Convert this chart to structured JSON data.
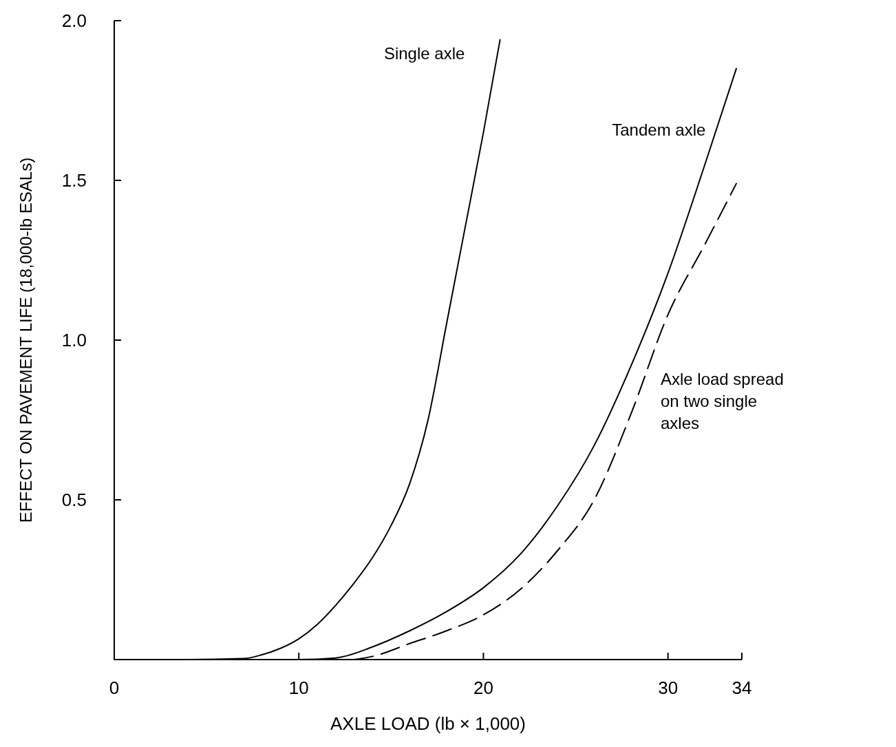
{
  "chart_data": {
    "type": "line",
    "xlabel": "AXLE LOAD (lb × 1,000)",
    "ylabel": "EFFECT ON PAVEMENT LIFE (18,000-lb ESALs)",
    "xlim": [
      0,
      34
    ],
    "xticks": [
      0,
      10,
      20,
      30,
      34
    ],
    "ylim": [
      0,
      2
    ],
    "yticks": [
      {
        "value": 0.5,
        "label": "0.5"
      },
      {
        "value": 1,
        "label": "1.0"
      },
      {
        "value": 1.5,
        "label": "1.5"
      },
      {
        "value": 2,
        "label": "2.0"
      }
    ],
    "grid": false,
    "legend": false,
    "marker": "none",
    "series": [
      {
        "name": "Single axle",
        "color": "#000000",
        "line_style": "solid",
        "x": [
          0,
          4,
          7,
          8,
          9,
          10,
          11,
          12,
          13,
          14,
          15,
          16,
          17,
          18,
          19,
          20,
          20.9
        ],
        "values": [
          0,
          0,
          0.003,
          0.015,
          0.035,
          0.065,
          0.11,
          0.17,
          0.24,
          0.32,
          0.42,
          0.55,
          0.75,
          1.05,
          1.35,
          1.65,
          1.94
        ]
      },
      {
        "name": "Tandem axle",
        "color": "#000000",
        "line_style": "solid",
        "x": [
          0,
          10,
          12,
          14,
          16,
          18,
          20,
          22,
          24,
          26,
          28,
          30,
          32,
          33.7
        ],
        "values": [
          0,
          0,
          0.005,
          0.04,
          0.09,
          0.15,
          0.225,
          0.33,
          0.48,
          0.67,
          0.92,
          1.21,
          1.55,
          1.85
        ]
      },
      {
        "name": "Axle load spread on two single axles",
        "color": "#000000",
        "line_style": "dashed",
        "x": [
          13,
          14,
          16,
          18,
          20,
          22,
          24,
          26,
          28,
          30,
          32,
          33.7
        ],
        "values": [
          0,
          0.01,
          0.05,
          0.09,
          0.14,
          0.22,
          0.34,
          0.5,
          0.77,
          1.08,
          1.3,
          1.49
        ]
      }
    ]
  }
}
